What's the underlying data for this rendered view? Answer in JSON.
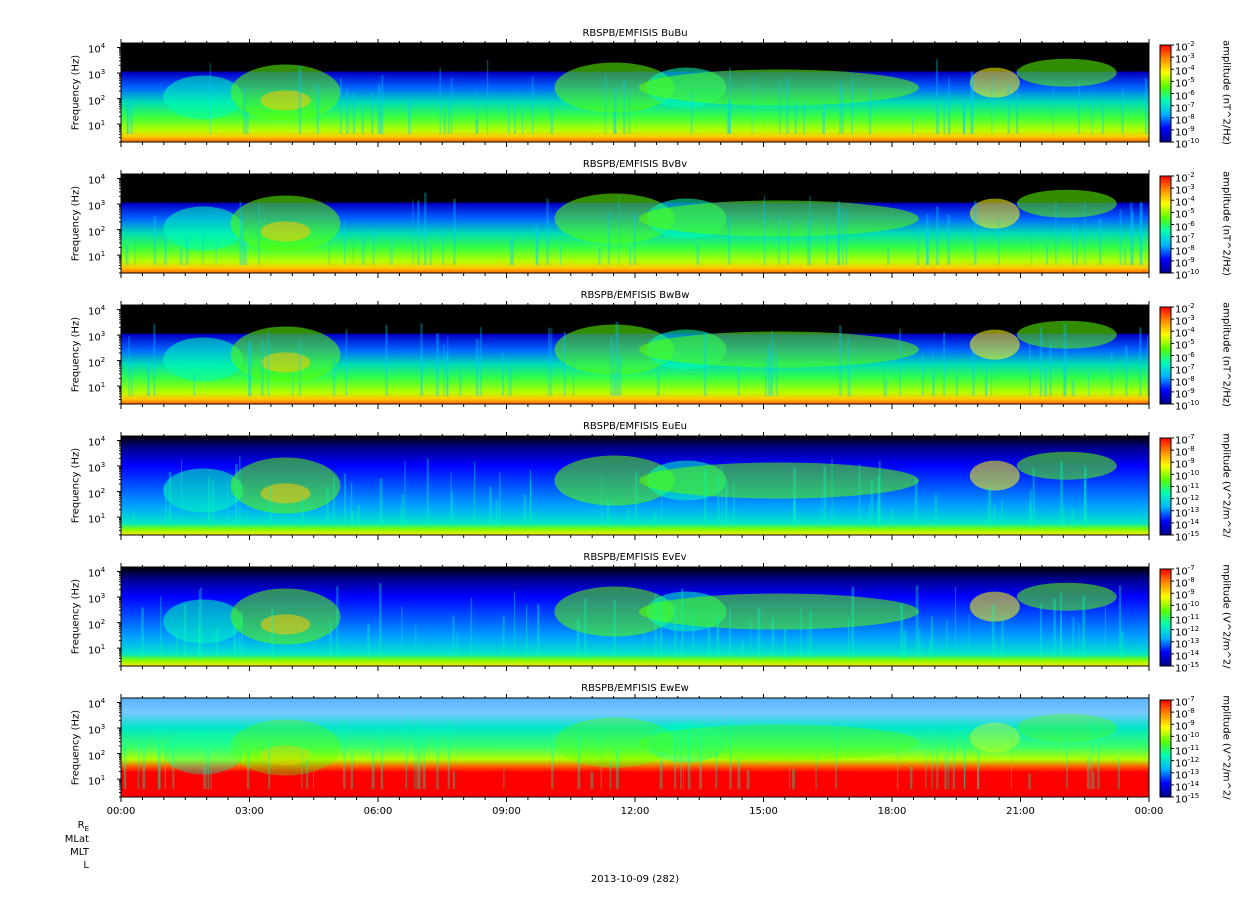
{
  "x_axis": {
    "tick_labels": [
      "00:00",
      "03:00",
      "06:00",
      "09:00",
      "12:00",
      "15:00",
      "18:00",
      "21:00",
      "00:00"
    ],
    "ephemeris_labels": [
      "R",
      "MLat",
      "MLT",
      "L"
    ],
    "re_subscript": "E",
    "date_label": "2013-10-09 (282)"
  },
  "colors": {
    "colormap": [
      "#00008b",
      "#0000ff",
      "#00b4ff",
      "#00ffb4",
      "#5aff00",
      "#ffff00",
      "#ff8c00",
      "#ff0000"
    ],
    "background_quiet": "#000000"
  },
  "chart_data": [
    {
      "type": "heatmap",
      "title": "RBSPB/EMFISIS  BuBu",
      "ylabel": "Frequency (Hz)",
      "y_scale": "log",
      "y_ticks": [
        "10",
        "10",
        "10",
        "10"
      ],
      "y_tick_exponents": [
        "1",
        "2",
        "3",
        "4"
      ],
      "colorbar_label": "amplitude (nT^2/Hz)",
      "colorbar_ticks": [
        "10",
        "10",
        "10",
        "10",
        "10",
        "10",
        "10",
        "10",
        "10"
      ],
      "colorbar_exponents": [
        "-2",
        "-3",
        "-4",
        "-5",
        "-6",
        "-7",
        "-8",
        "-9",
        "-10"
      ],
      "clim": [
        1e-10,
        0.01
      ],
      "x_range": [
        "00:00",
        "00:00"
      ],
      "y_range": [
        2,
        15000
      ]
    },
    {
      "type": "heatmap",
      "title": "RBSPB/EMFISIS  BvBv",
      "ylabel": "Frequency (Hz)",
      "y_scale": "log",
      "y_ticks": [
        "10",
        "10",
        "10",
        "10"
      ],
      "y_tick_exponents": [
        "1",
        "2",
        "3",
        "4"
      ],
      "colorbar_label": "amplitude (nT^2/Hz)",
      "colorbar_ticks": [
        "10",
        "10",
        "10",
        "10",
        "10",
        "10",
        "10",
        "10",
        "10"
      ],
      "colorbar_exponents": [
        "-2",
        "-3",
        "-4",
        "-5",
        "-6",
        "-7",
        "-8",
        "-9",
        "-10"
      ],
      "clim": [
        1e-10,
        0.01
      ],
      "x_range": [
        "00:00",
        "00:00"
      ],
      "y_range": [
        2,
        15000
      ]
    },
    {
      "type": "heatmap",
      "title": "RBSPB/EMFISIS  BwBw",
      "ylabel": "Frequency (Hz)",
      "y_scale": "log",
      "y_ticks": [
        "10",
        "10",
        "10",
        "10"
      ],
      "y_tick_exponents": [
        "1",
        "2",
        "3",
        "4"
      ],
      "colorbar_label": "amplitude (nT^2/Hz)",
      "colorbar_ticks": [
        "10",
        "10",
        "10",
        "10",
        "10",
        "10",
        "10",
        "10",
        "10"
      ],
      "colorbar_exponents": [
        "-2",
        "-3",
        "-4",
        "-5",
        "-6",
        "-7",
        "-8",
        "-9",
        "-10"
      ],
      "clim": [
        1e-10,
        0.01
      ],
      "x_range": [
        "00:00",
        "00:00"
      ],
      "y_range": [
        2,
        15000
      ]
    },
    {
      "type": "heatmap",
      "title": "RBSPB/EMFISIS  EuEu",
      "ylabel": "Frequency (Hz)",
      "y_scale": "log",
      "y_ticks": [
        "10",
        "10",
        "10",
        "10"
      ],
      "y_tick_exponents": [
        "1",
        "2",
        "3",
        "4"
      ],
      "colorbar_label": "mplitude (V^2/m^2/",
      "colorbar_ticks": [
        "10",
        "10",
        "10",
        "10",
        "10",
        "10",
        "10",
        "10",
        "10"
      ],
      "colorbar_exponents": [
        "-7",
        "-8",
        "-9",
        "-10",
        "-11",
        "-12",
        "-13",
        "-14",
        "-15"
      ],
      "clim": [
        1e-15,
        1e-07
      ],
      "x_range": [
        "00:00",
        "00:00"
      ],
      "y_range": [
        2,
        15000
      ]
    },
    {
      "type": "heatmap",
      "title": "RBSPB/EMFISIS  EvEv",
      "ylabel": "Frequency (Hz)",
      "y_scale": "log",
      "y_ticks": [
        "10",
        "10",
        "10",
        "10"
      ],
      "y_tick_exponents": [
        "1",
        "2",
        "3",
        "4"
      ],
      "colorbar_label": "mplitude (V^2/m^2/",
      "colorbar_ticks": [
        "10",
        "10",
        "10",
        "10",
        "10",
        "10",
        "10",
        "10",
        "10"
      ],
      "colorbar_exponents": [
        "-7",
        "-8",
        "-9",
        "-10",
        "-11",
        "-12",
        "-13",
        "-14",
        "-15"
      ],
      "clim": [
        1e-15,
        1e-07
      ],
      "x_range": [
        "00:00",
        "00:00"
      ],
      "y_range": [
        2,
        15000
      ]
    },
    {
      "type": "heatmap",
      "title": "RBSPB/EMFISIS  EwEw",
      "ylabel": "Frequency (Hz)",
      "y_scale": "log",
      "y_ticks": [
        "10",
        "10",
        "10",
        "10"
      ],
      "y_tick_exponents": [
        "1",
        "2",
        "3",
        "4"
      ],
      "colorbar_label": "mplitude (V^2/m^2/",
      "colorbar_ticks": [
        "10",
        "10",
        "10",
        "10",
        "10",
        "10",
        "10",
        "10",
        "10"
      ],
      "colorbar_exponents": [
        "-7",
        "-8",
        "-9",
        "-10",
        "-11",
        "-12",
        "-13",
        "-14",
        "-15"
      ],
      "clim": [
        1e-15,
        1e-07
      ],
      "x_range": [
        "00:00",
        "00:00"
      ],
      "y_range": [
        2,
        15000
      ]
    }
  ]
}
